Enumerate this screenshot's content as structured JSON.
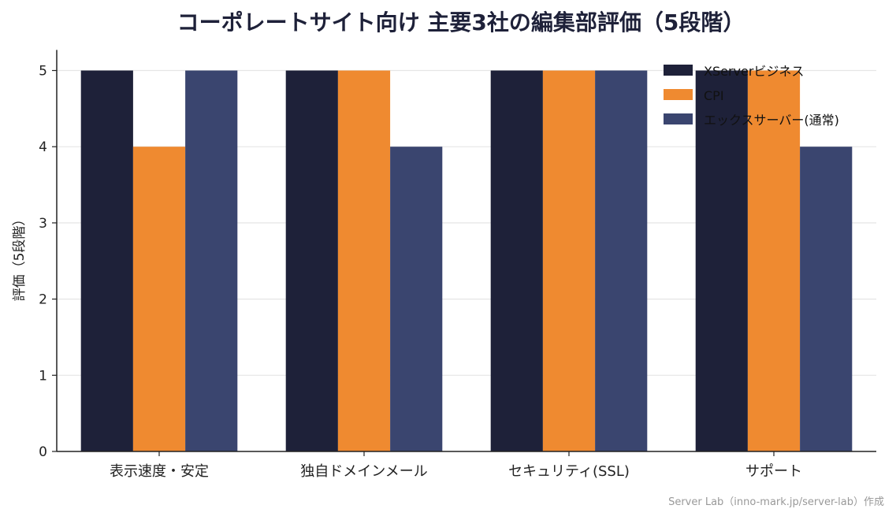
{
  "chart_data": {
    "type": "bar",
    "title": "コーポレートサイト向け 主要3社の編集部評価（5段階）",
    "ylabel": "評価（5段階）",
    "xlabel": "",
    "categories": [
      "表示速度・安定",
      "独自ドメインメール",
      "セキュリティ(SSL)",
      "サポート"
    ],
    "series": [
      {
        "name": "XServerビジネス",
        "values": [
          5,
          5,
          5,
          5
        ],
        "color": "#1e2139"
      },
      {
        "name": "CPI",
        "values": [
          4,
          5,
          5,
          5
        ],
        "color": "#ef8a30"
      },
      {
        "name": "エックスサーバー(通常)",
        "values": [
          5,
          4,
          5,
          4
        ],
        "color": "#3a456f"
      }
    ],
    "ylim": [
      0,
      5.25
    ],
    "yticks": [
      0,
      1,
      2,
      3,
      4,
      5
    ],
    "grid": true,
    "legend_position": "top-right"
  },
  "footer": {
    "credit": "Server Lab（inno-mark.jp/server-lab）作成"
  }
}
